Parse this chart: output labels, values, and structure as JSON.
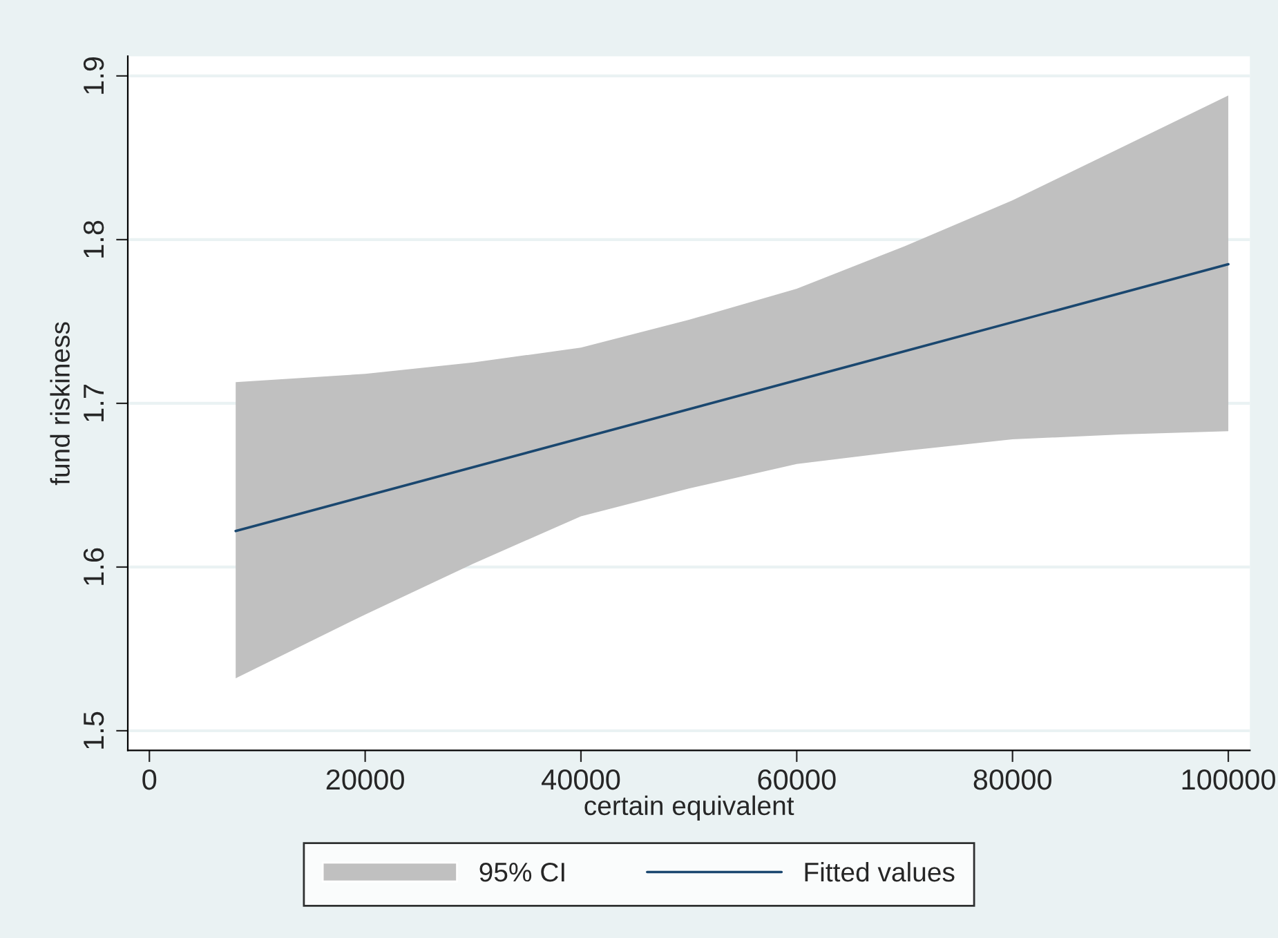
{
  "chart_data": {
    "type": "line",
    "xlabel": "certain equivalent",
    "ylabel": "fund riskiness",
    "series": [
      {
        "name": "95% CI",
        "color": "#c0c0c0",
        "x": [
          8000,
          20000,
          30000,
          40000,
          50000,
          60000,
          70000,
          80000,
          90000,
          100000
        ],
        "values": [
          null,
          null,
          null,
          null,
          null,
          null,
          null,
          null,
          null,
          null
        ],
        "lower": [
          1.532,
          1.571,
          1.602,
          1.631,
          1.648,
          1.663,
          1.671,
          1.678,
          1.681,
          1.683
        ],
        "upper": [
          1.713,
          1.718,
          1.725,
          1.734,
          1.751,
          1.77,
          1.796,
          1.824,
          1.856,
          1.888
        ]
      },
      {
        "name": "Fitted values",
        "type": "line",
        "color": "#1a476f",
        "x": [
          8000,
          100000
        ],
        "values": [
          1.622,
          1.785
        ]
      }
    ],
    "xlim": [
      -2000,
      102000
    ],
    "ylim": [
      1.488,
      1.912
    ],
    "xticks": [
      0,
      20000,
      40000,
      60000,
      80000,
      100000
    ],
    "yticks": [
      1.5,
      1.6,
      1.7,
      1.8,
      1.9
    ],
    "grid": "y",
    "legend": "bottom"
  }
}
